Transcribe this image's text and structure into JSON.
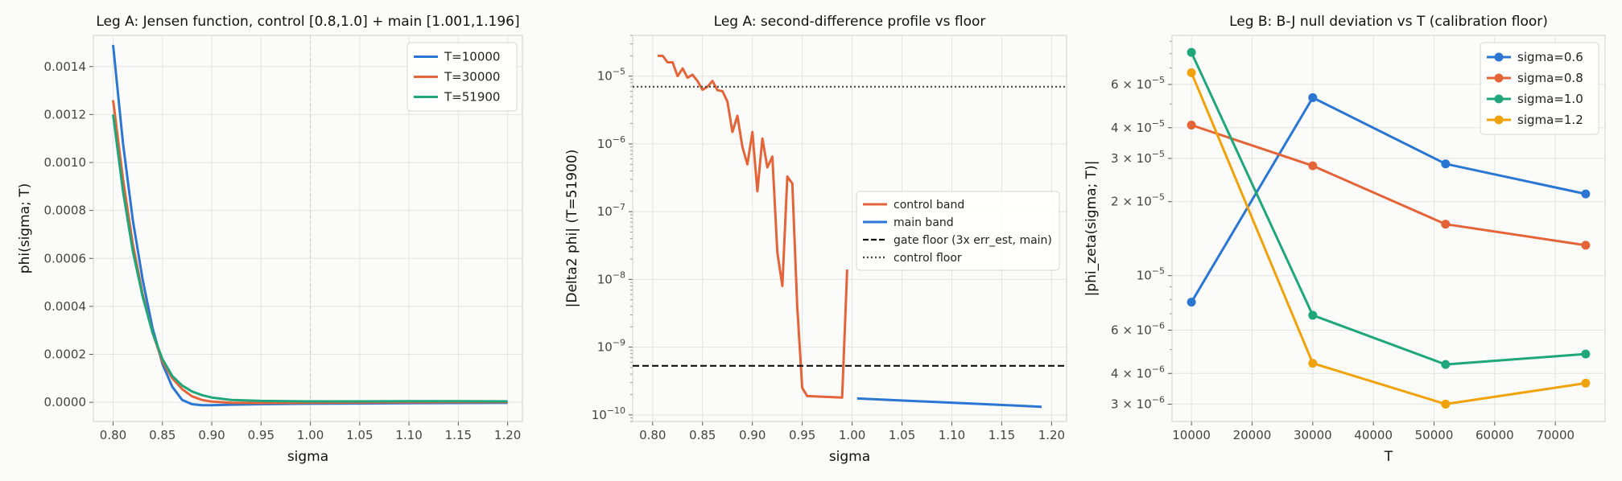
{
  "chart_data": [
    {
      "type": "line",
      "title": "Leg A: Jensen function, control [0.8,1.0] + main [1.001,1.196]",
      "xlabel": "sigma",
      "ylabel": "phi(sigma; T)",
      "xlim": [
        0.78,
        1.215
      ],
      "ylim": [
        -8e-05,
        0.00153
      ],
      "xticks": [
        "0.80",
        "0.85",
        "0.90",
        "0.95",
        "1.00",
        "1.05",
        "1.10",
        "1.15",
        "1.20"
      ],
      "yticks": [
        "0.0000",
        "0.0002",
        "0.0004",
        "0.0006",
        "0.0008",
        "0.0010",
        "0.0012",
        "0.0014"
      ],
      "grid": true,
      "legend": "top-right",
      "annotations": "vertical dashed line at sigma=1.00",
      "series": [
        {
          "name": "T=10000",
          "color": "#2a76d2",
          "x": [
            0.8,
            0.81,
            0.82,
            0.83,
            0.84,
            0.85,
            0.86,
            0.87,
            0.88,
            0.89,
            0.9,
            0.92,
            0.95,
            1.0,
            1.05,
            1.1,
            1.15,
            1.2
          ],
          "y": [
            0.00149,
            0.00108,
            0.00076,
            0.00051,
            0.00031,
            0.00016,
            6.5e-05,
            1e-05,
            -8e-06,
            -1.2e-05,
            -1.2e-05,
            -1e-05,
            -8e-06,
            -6e-06,
            -5e-06,
            -4e-06,
            -3e-06,
            -2e-06
          ]
        },
        {
          "name": "T=30000",
          "color": "#e4643a",
          "x": [
            0.8,
            0.81,
            0.82,
            0.83,
            0.84,
            0.85,
            0.86,
            0.87,
            0.88,
            0.89,
            0.9,
            0.92,
            0.95,
            1.0,
            1.05,
            1.1,
            1.15,
            1.2
          ],
          "y": [
            0.00126,
            0.00093,
            0.00066,
            0.00045,
            0.00029,
            0.00017,
            0.0001,
            5.5e-05,
            2.5e-05,
            1e-05,
            3e-06,
            -2e-06,
            -3e-06,
            -2e-06,
            -1e-06,
            0.0,
            1e-06,
            1e-06
          ]
        },
        {
          "name": "T=51900",
          "color": "#1fa67a",
          "x": [
            0.8,
            0.81,
            0.82,
            0.83,
            0.84,
            0.85,
            0.86,
            0.87,
            0.88,
            0.89,
            0.9,
            0.92,
            0.95,
            1.0,
            1.05,
            1.1,
            1.15,
            1.2
          ],
          "y": [
            0.0012,
            0.00088,
            0.00063,
            0.00044,
            0.00029,
            0.00018,
            0.00011,
            7e-05,
            4.5e-05,
            3e-05,
            2e-05,
            1e-05,
            6e-06,
            4e-06,
            4e-06,
            5e-06,
            5e-06,
            4e-06
          ]
        }
      ]
    },
    {
      "type": "line",
      "title": "Leg A: second-difference profile vs floor",
      "xlabel": "sigma",
      "ylabel": "|Delta2 phi|   (T=51900)",
      "yscale": "log",
      "xlim": [
        0.78,
        1.215
      ],
      "ylim": [
        8e-11,
        4e-05
      ],
      "xticks": [
        "0.80",
        "0.85",
        "0.90",
        "0.95",
        "1.00",
        "1.05",
        "1.10",
        "1.15",
        "1.20"
      ],
      "yticks": [
        "10^-10",
        "10^-9",
        "10^-8",
        "10^-7",
        "10^-6",
        "10^-5"
      ],
      "grid": true,
      "legend": "center-right",
      "series": [
        {
          "name": "control band",
          "color": "#e4643a",
          "style": "solid",
          "x": [
            0.805,
            0.81,
            0.815,
            0.82,
            0.825,
            0.83,
            0.835,
            0.84,
            0.845,
            0.85,
            0.855,
            0.86,
            0.865,
            0.87,
            0.875,
            0.88,
            0.885,
            0.89,
            0.895,
            0.9,
            0.905,
            0.91,
            0.915,
            0.92,
            0.925,
            0.93,
            0.935,
            0.94,
            0.945,
            0.95,
            0.955,
            0.99,
            0.995
          ],
          "y": [
            2e-05,
            2e-05,
            1.6e-05,
            1.6e-05,
            1e-05,
            1.3e-05,
            9.5e-06,
            1.05e-05,
            8.5e-06,
            6.3e-06,
            7e-06,
            8.5e-06,
            6.2e-06,
            6e-06,
            4.2e-06,
            1.5e-06,
            2.6e-06,
            9e-07,
            5e-07,
            1.5e-06,
            2e-07,
            1.2e-06,
            4.5e-07,
            6.5e-07,
            2.5e-08,
            8e-09,
            3.3e-07,
            2.6e-07,
            4e-09,
            2.5e-10,
            1.9e-10,
            1.8e-10,
            1.4e-08
          ]
        },
        {
          "name": "main band",
          "color": "#2a76d2",
          "style": "solid",
          "x": [
            1.005,
            1.19
          ],
          "y": [
            1.75e-10,
            1.32e-10
          ]
        },
        {
          "name": "gate floor (3x err_est, main)",
          "color": "#111111",
          "style": "dashed",
          "x": [
            0.78,
            1.215
          ],
          "y": [
            5.3e-10,
            5.3e-10
          ]
        },
        {
          "name": "control floor",
          "color": "#444444",
          "style": "dotted",
          "x": [
            0.78,
            1.215
          ],
          "y": [
            7e-06,
            7e-06
          ]
        }
      ]
    },
    {
      "type": "line",
      "title": "Leg B: B-J null deviation vs T (calibration floor)",
      "xlabel": "T",
      "ylabel": "|phi_zeta(sigma; T)|",
      "yscale": "log",
      "xlim": [
        6800,
        78200
      ],
      "ylim": [
        2.55e-06,
        9.5e-05
      ],
      "xticks": [
        "10000",
        "20000",
        "30000",
        "40000",
        "50000",
        "60000",
        "70000"
      ],
      "yticks": [
        "3 x 10^-6",
        "4 x 10^-6",
        "6 x 10^-6",
        "10^-5",
        "2 x 10^-5",
        "3 x 10^-5",
        "4 x 10^-5",
        "6 x 10^-5"
      ],
      "grid": true,
      "legend": "top-right",
      "series": [
        {
          "name": "sigma=0.6",
          "color": "#2a76d2",
          "x": [
            10000,
            30000,
            51900,
            75000
          ],
          "y": [
            7.8e-06,
            5.3e-05,
            2.85e-05,
            2.15e-05
          ]
        },
        {
          "name": "sigma=0.8",
          "color": "#e4643a",
          "x": [
            10000,
            30000,
            51900,
            75000
          ],
          "y": [
            4.1e-05,
            2.8e-05,
            1.62e-05,
            1.33e-05
          ]
        },
        {
          "name": "sigma=1.0",
          "color": "#1fa67a",
          "x": [
            10000,
            30000,
            51900,
            75000
          ],
          "y": [
            8.1e-05,
            6.9e-06,
            4.35e-06,
            4.8e-06
          ]
        },
        {
          "name": "sigma=1.2",
          "color": "#f0a20b",
          "x": [
            10000,
            30000,
            51900,
            75000
          ],
          "y": [
            6.7e-05,
            4.4e-06,
            3e-06,
            3.65e-06
          ]
        }
      ]
    }
  ]
}
